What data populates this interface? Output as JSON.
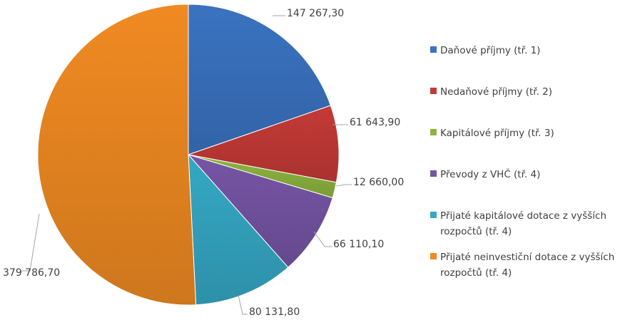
{
  "chart_data": {
    "type": "pie",
    "title": "",
    "legend_position": "right",
    "slices": [
      {
        "name": "Daňové příjmy (tř. 1)",
        "legend_lines": [
          "Daňové příjmy (tř. 1)"
        ],
        "value": 147267.3,
        "label": "147 267,30",
        "color": "#3a73c1"
      },
      {
        "name": "Nedaňové příjmy (tř. 2)",
        "legend_lines": [
          "Nedaňové příjmy (tř. 2)"
        ],
        "value": 61643.9,
        "label": "61 643,90",
        "color": "#c43a37"
      },
      {
        "name": "Kapitálové příjmy (tř. 3)",
        "legend_lines": [
          "Kapitálové příjmy (tř. 3)"
        ],
        "value": 12660.0,
        "label": "12 660,00",
        "color": "#8db53f"
      },
      {
        "name": "Převody z VHČ (tř. 4)",
        "legend_lines": [
          "Převody z VHČ (tř. 4)"
        ],
        "value": 66110.1,
        "label": "66 110,10",
        "color": "#7655a5"
      },
      {
        "name": "Přijaté kapitálové dotace z vyšších rozpočtů (tř. 4)",
        "legend_lines": [
          "Přijaté kapitálové dotace z vyšších",
          "rozpočtů (tř. 4)"
        ],
        "value": 80131.8,
        "label": "80 131,80",
        "color": "#35a8c4"
      },
      {
        "name": "Přijaté neinvestiční dotace z vyšších rozpočtů (tř. 4)",
        "legend_lines": [
          "Přijaté neinvestiční dotace z vyšších",
          "rozpočtů (tř. 4)"
        ],
        "value": 379786.7,
        "label": "379 786,70",
        "color": "#f08a22"
      }
    ]
  }
}
